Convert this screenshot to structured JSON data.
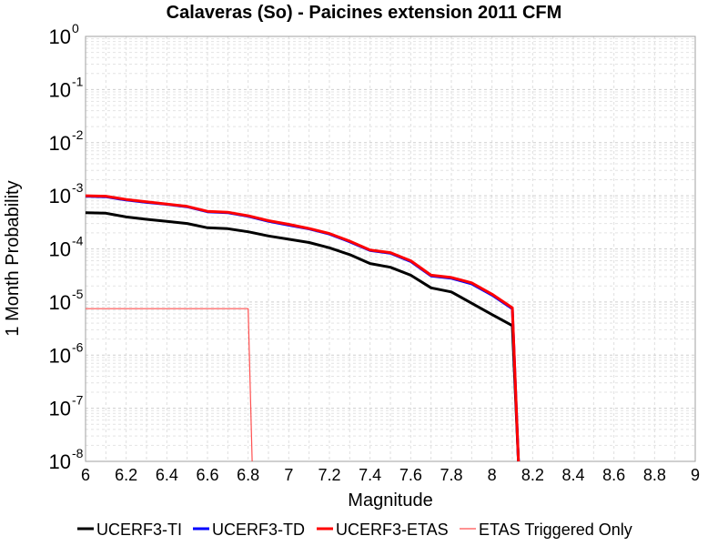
{
  "chart_data": {
    "type": "line",
    "title": "Calaveras (So) - Paicines extension 2011 CFM",
    "xlabel": "Magnitude",
    "ylabel": "1 Month Probability",
    "xlim": [
      6,
      9
    ],
    "ylim": [
      1e-08,
      1
    ],
    "y_scale": "log",
    "x_ticks": [
      "6",
      "6.2",
      "6.4",
      "6.6",
      "6.8",
      "7",
      "7.2",
      "7.4",
      "7.6",
      "7.8",
      "8",
      "8.2",
      "8.4",
      "8.6",
      "8.8",
      "9"
    ],
    "y_ticks": [
      {
        "base": "10",
        "exp": "0"
      },
      {
        "base": "10",
        "exp": "-1"
      },
      {
        "base": "10",
        "exp": "-2"
      },
      {
        "base": "10",
        "exp": "-3"
      },
      {
        "base": "10",
        "exp": "-4"
      },
      {
        "base": "10",
        "exp": "-5"
      },
      {
        "base": "10",
        "exp": "-6"
      },
      {
        "base": "10",
        "exp": "-7"
      },
      {
        "base": "10",
        "exp": "-8"
      }
    ],
    "grid": true,
    "legend_position": "bottom",
    "series": [
      {
        "name": "UCERF3-TI",
        "color": "#000000",
        "x": [
          6.0,
          6.1,
          6.2,
          6.3,
          6.4,
          6.5,
          6.6,
          6.7,
          6.8,
          6.9,
          7.0,
          7.1,
          7.2,
          7.3,
          7.4,
          7.5,
          7.6,
          7.7,
          7.8,
          7.9,
          8.0,
          8.1,
          8.13
        ],
        "y": [
          0.00048,
          0.00047,
          0.0004,
          0.00036,
          0.00033,
          0.0003,
          0.00025,
          0.00024,
          0.00021,
          0.000175,
          0.000152,
          0.000132,
          0.000105,
          7.8e-05,
          5.3e-05,
          4.5e-05,
          3.2e-05,
          1.85e-05,
          1.55e-05,
          9.5e-06,
          5.8e-06,
          3.6e-06,
          1e-08
        ]
      },
      {
        "name": "UCERF3-TD",
        "color": "#0000ff",
        "x": [
          6.0,
          6.1,
          6.2,
          6.3,
          6.4,
          6.5,
          6.6,
          6.7,
          6.8,
          6.9,
          7.0,
          7.1,
          7.2,
          7.3,
          7.4,
          7.5,
          7.6,
          7.7,
          7.8,
          7.9,
          8.0,
          8.1,
          8.13
        ],
        "y": [
          0.00098,
          0.00096,
          0.00083,
          0.00075,
          0.00069,
          0.00062,
          0.0005,
          0.00048,
          0.00041,
          0.00033,
          0.00028,
          0.000238,
          0.00019,
          0.000136,
          9.3e-05,
          8.3e-05,
          5.8e-05,
          3.1e-05,
          2.8e-05,
          2.2e-05,
          1.35e-05,
          7.5e-06,
          1e-08
        ]
      },
      {
        "name": "UCERF3-ETAS",
        "color": "#ff0000",
        "x": [
          6.0,
          6.1,
          6.2,
          6.3,
          6.4,
          6.5,
          6.6,
          6.7,
          6.8,
          6.9,
          7.0,
          7.1,
          7.2,
          7.3,
          7.4,
          7.5,
          7.6,
          7.7,
          7.8,
          7.9,
          8.0,
          8.1,
          8.13
        ],
        "y": [
          0.001,
          0.00098,
          0.00085,
          0.00077,
          0.0007,
          0.00063,
          0.00051,
          0.00049,
          0.00042,
          0.00034,
          0.00029,
          0.000242,
          0.000195,
          0.00014,
          9.5e-05,
          8.5e-05,
          6e-05,
          3.2e-05,
          2.9e-05,
          2.3e-05,
          1.4e-05,
          7.8e-06,
          1e-08
        ]
      },
      {
        "name": "ETAS Triggered Only",
        "color": "#ff5050",
        "x": [
          6.0,
          6.8,
          6.82
        ],
        "y": [
          7.5e-06,
          7.5e-06,
          1e-08
        ]
      }
    ]
  }
}
